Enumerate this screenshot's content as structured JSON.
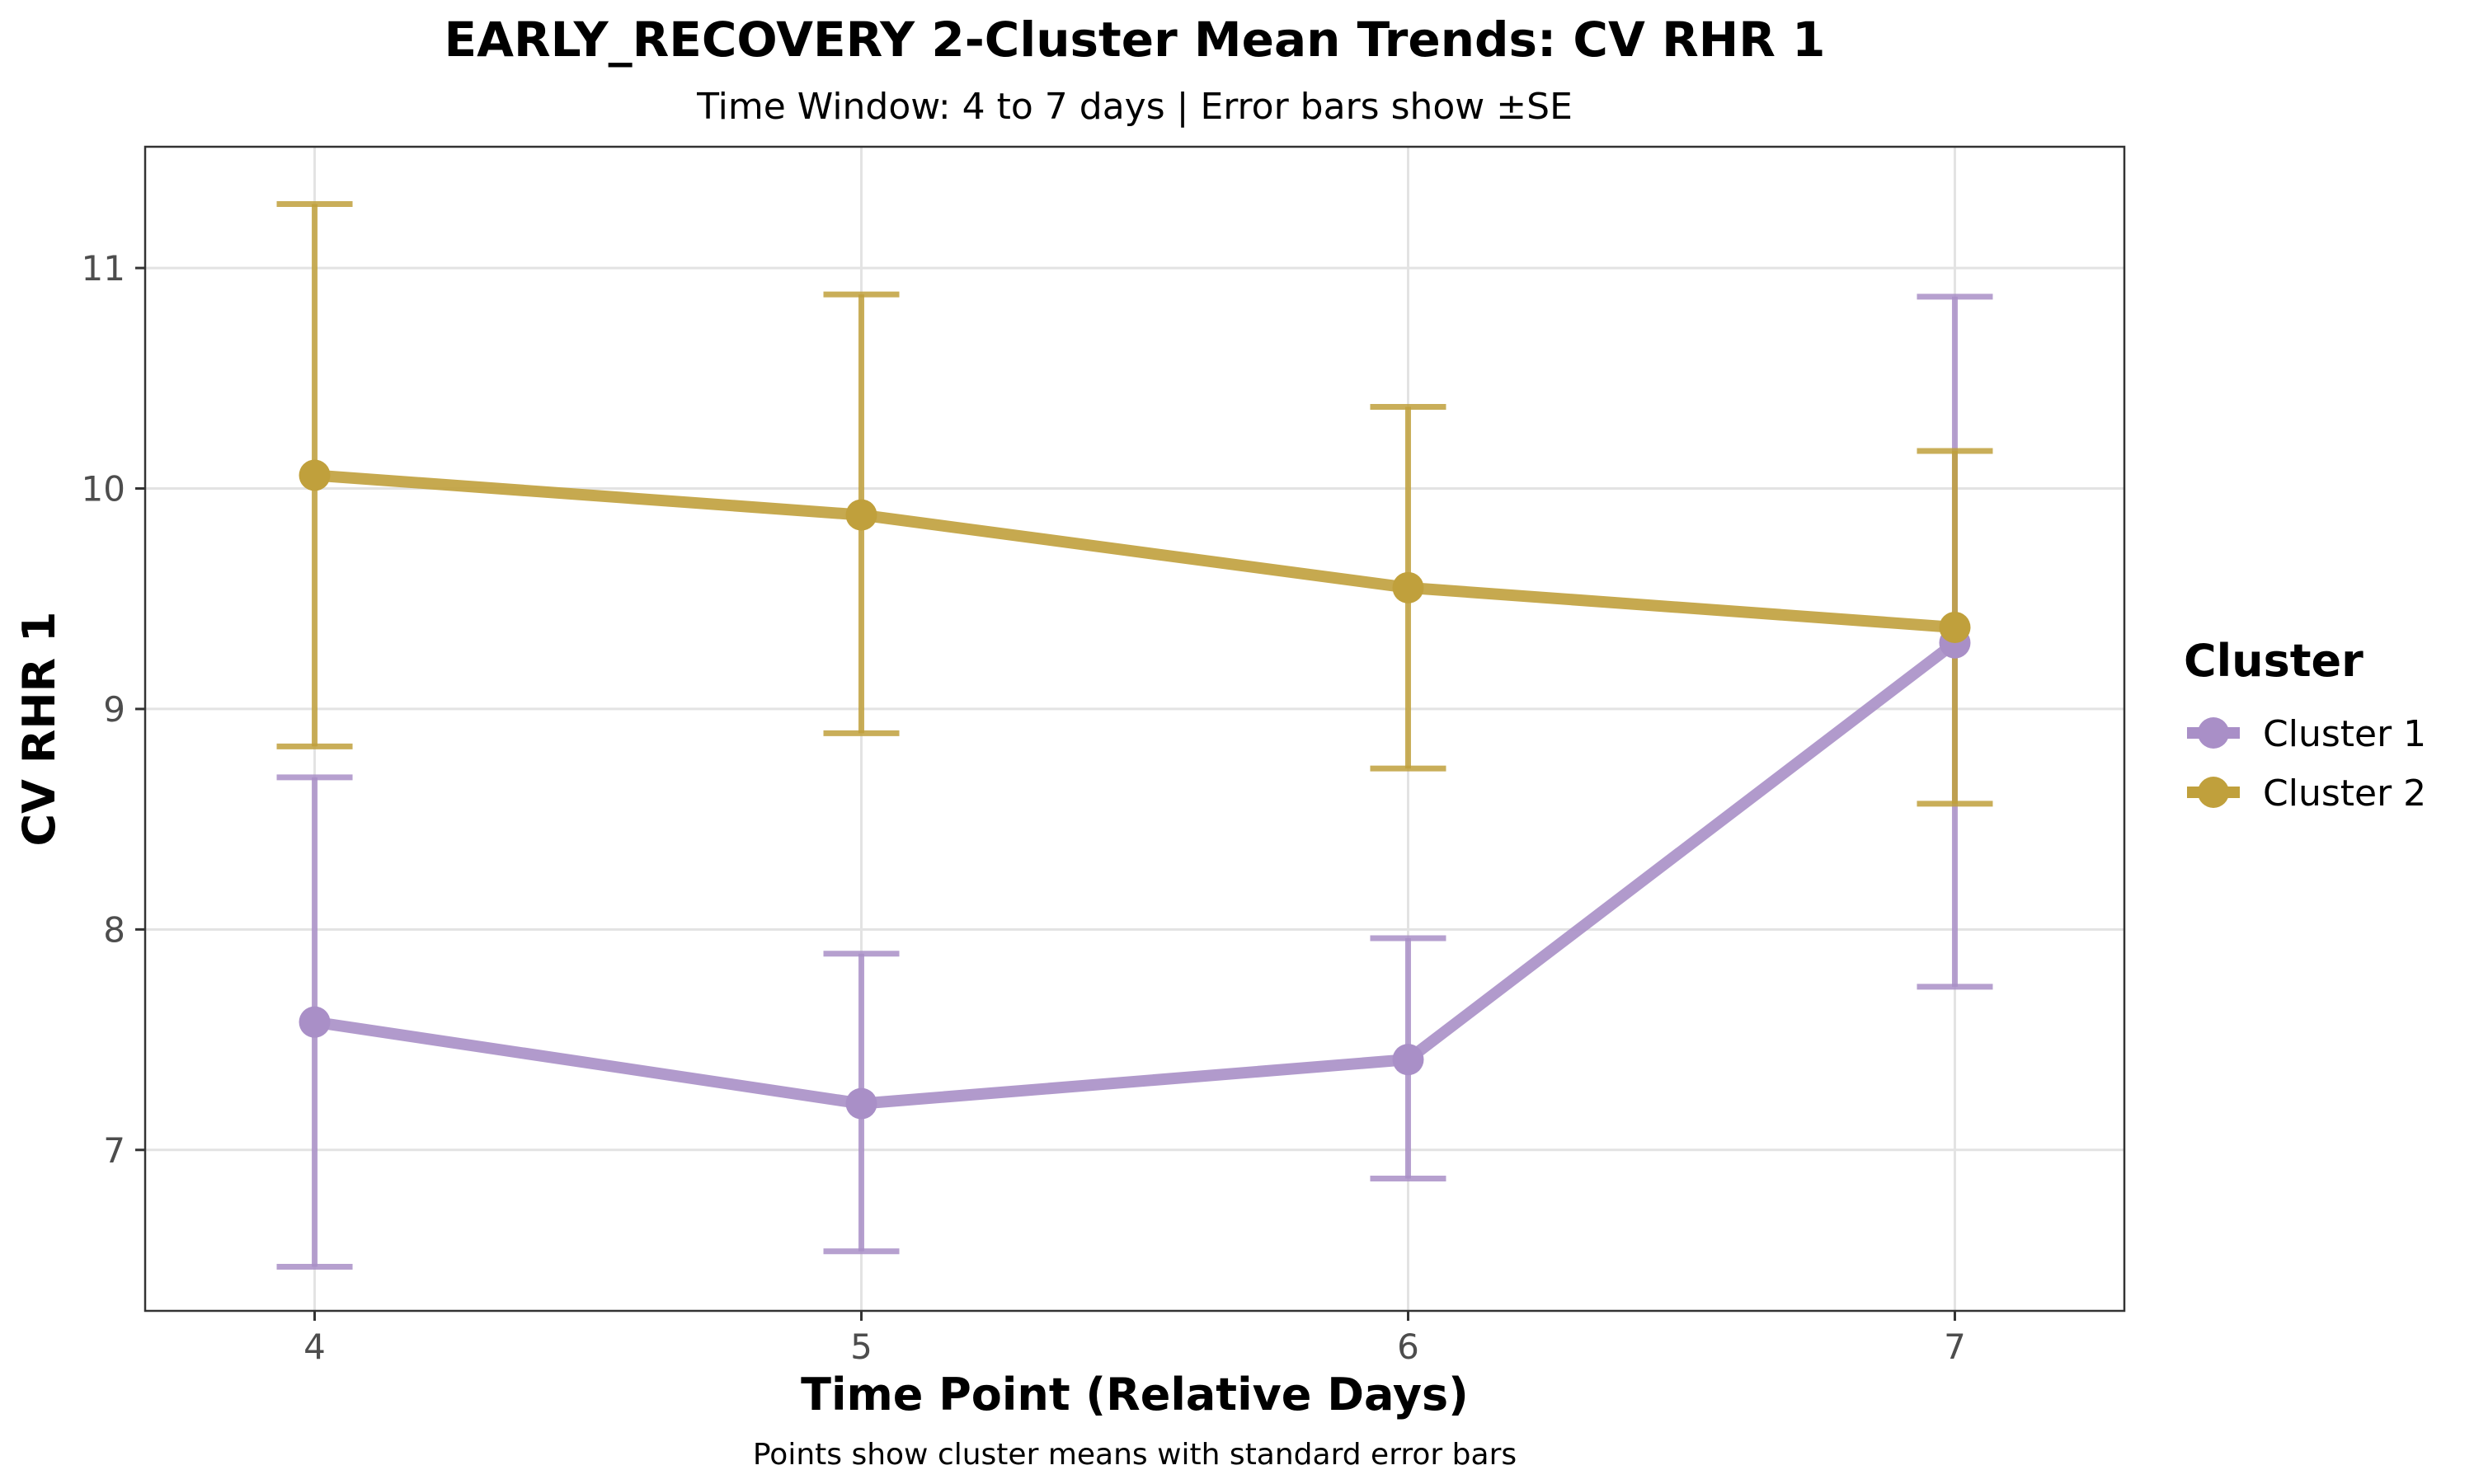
{
  "chart_data": {
    "type": "line",
    "title": "EARLY_RECOVERY 2-Cluster Mean Trends: CV RHR 1",
    "subtitle": "Time Window: 4 to 7 days | Error bars show ±SE",
    "xlabel": "Time Point (Relative Days)",
    "ylabel": "CV RHR 1",
    "caption": "Points show cluster means with standard error bars",
    "x": [
      4,
      5,
      6,
      7
    ],
    "x_ticks": [
      "4",
      "5",
      "6",
      "7"
    ],
    "xlim": [
      3.69,
      7.31
    ],
    "y_ticks": [
      7,
      8,
      9,
      10,
      11
    ],
    "y_tick_labels": [
      "7",
      "8",
      "9",
      "10",
      "11"
    ],
    "ylim": [
      6.27,
      11.55
    ],
    "grid": true,
    "legend": {
      "title": "Cluster",
      "placement": "right"
    },
    "series": [
      {
        "name": "Cluster 1",
        "color": "#a98fc7",
        "values": [
          7.58,
          7.21,
          7.41,
          9.3
        ],
        "error_low": [
          6.47,
          6.54,
          6.87,
          7.74
        ],
        "error_high": [
          8.69,
          7.89,
          7.96,
          10.87
        ]
      },
      {
        "name": "Cluster 2",
        "color": "#c0a03c",
        "values": [
          10.06,
          9.88,
          9.55,
          9.37
        ],
        "error_low": [
          8.83,
          8.89,
          8.73,
          8.57
        ],
        "error_high": [
          11.29,
          10.88,
          10.37,
          10.17
        ]
      }
    ]
  }
}
